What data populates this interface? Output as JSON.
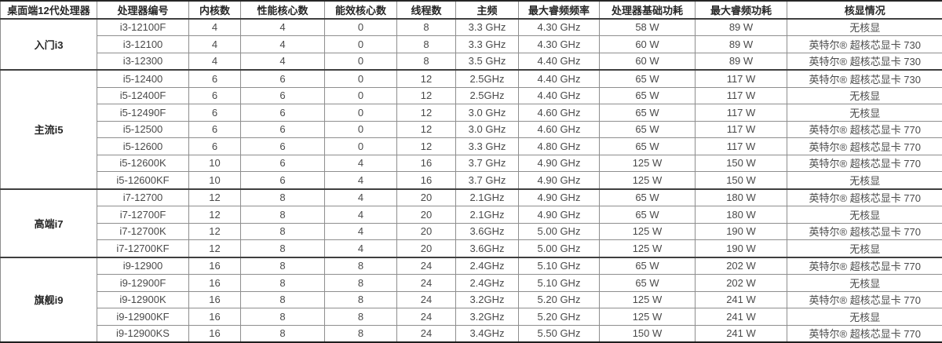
{
  "chart_data": {
    "type": "table",
    "title": "桌面端12代处理器规格表",
    "columns": [
      "桌面端12代处理器",
      "处理器编号",
      "内核数",
      "性能核心数",
      "能效核心数",
      "线程数",
      "主频",
      "最大睿频频率",
      "处理器基础功耗",
      "最大睿频功耗",
      "核显情况"
    ],
    "groups": [
      {
        "label": "入门i3",
        "rows": [
          [
            "i3-12100F",
            "4",
            "4",
            "0",
            "8",
            "3.3 GHz",
            "4.30 GHz",
            "58 W",
            "89 W",
            "无核显"
          ],
          [
            "i3-12100",
            "4",
            "4",
            "0",
            "8",
            "3.3 GHz",
            "4.30 GHz",
            "60 W",
            "89 W",
            "英特尔® 超核芯显卡 730"
          ],
          [
            "i3-12300",
            "4",
            "4",
            "0",
            "8",
            "3.5 GHz",
            "4.40 GHz",
            "60 W",
            "89 W",
            "英特尔® 超核芯显卡 730"
          ]
        ]
      },
      {
        "label": "主流i5",
        "rows": [
          [
            "i5-12400",
            "6",
            "6",
            "0",
            "12",
            "2.5GHz",
            "4.40 GHz",
            "65 W",
            "117 W",
            "英特尔® 超核芯显卡 730"
          ],
          [
            "i5-12400F",
            "6",
            "6",
            "0",
            "12",
            "2.5GHz",
            "4.40 GHz",
            "65 W",
            "117 W",
            "无核显"
          ],
          [
            "i5-12490F",
            "6",
            "6",
            "0",
            "12",
            "3.0 GHz",
            "4.60 GHz",
            "65 W",
            "117 W",
            "无核显"
          ],
          [
            "i5-12500",
            "6",
            "6",
            "0",
            "12",
            "3.0 GHz",
            "4.60 GHz",
            "65 W",
            "117 W",
            "英特尔® 超核芯显卡 770"
          ],
          [
            "i5-12600",
            "6",
            "6",
            "0",
            "12",
            "3.3 GHz",
            "4.80 GHz",
            "65 W",
            "117 W",
            "英特尔® 超核芯显卡 770"
          ],
          [
            "i5-12600K",
            "10",
            "6",
            "4",
            "16",
            "3.7 GHz",
            "4.90 GHz",
            "125 W",
            "150 W",
            "英特尔® 超核芯显卡 770"
          ],
          [
            "i5-12600KF",
            "10",
            "6",
            "4",
            "16",
            "3.7 GHz",
            "4.90 GHz",
            "125 W",
            "150 W",
            "无核显"
          ]
        ]
      },
      {
        "label": "高端i7",
        "rows": [
          [
            "i7-12700",
            "12",
            "8",
            "4",
            "20",
            "2.1GHz",
            "4.90 GHz",
            "65 W",
            "180 W",
            "英特尔® 超核芯显卡 770"
          ],
          [
            "i7-12700F",
            "12",
            "8",
            "4",
            "20",
            "2.1GHz",
            "4.90 GHz",
            "65 W",
            "180 W",
            "无核显"
          ],
          [
            "i7-12700K",
            "12",
            "8",
            "4",
            "20",
            "3.6GHz",
            "5.00 GHz",
            "125 W",
            "190 W",
            "英特尔® 超核芯显卡 770"
          ],
          [
            "i7-12700KF",
            "12",
            "8",
            "4",
            "20",
            "3.6GHz",
            "5.00 GHz",
            "125 W",
            "190 W",
            "无核显"
          ]
        ]
      },
      {
        "label": "旗舰i9",
        "rows": [
          [
            "i9-12900",
            "16",
            "8",
            "8",
            "24",
            "2.4GHz",
            "5.10 GHz",
            "65 W",
            "202 W",
            "英特尔® 超核芯显卡 770"
          ],
          [
            "i9-12900F",
            "16",
            "8",
            "8",
            "24",
            "2.4GHz",
            "5.10 GHz",
            "65 W",
            "202 W",
            "无核显"
          ],
          [
            "i9-12900K",
            "16",
            "8",
            "8",
            "24",
            "3.2GHz",
            "5.20 GHz",
            "125 W",
            "241 W",
            "英特尔® 超核芯显卡 770"
          ],
          [
            "i9-12900KF",
            "16",
            "8",
            "8",
            "24",
            "3.2GHz",
            "5.20 GHz",
            "125 W",
            "241 W",
            "无核显"
          ],
          [
            "i9-12900KS",
            "16",
            "8",
            "8",
            "24",
            "3.4GHz",
            "5.50 GHz",
            "150 W",
            "241 W",
            "英特尔® 超核芯显卡 770"
          ]
        ]
      }
    ],
    "layout_hints": {
      "grid": "on",
      "group_column_spans_rows": true,
      "text_color": "#4a4a4a",
      "header_text_color": "#262626",
      "grid_color": "#8e8e8e",
      "separator_color": "#3f3f3f",
      "background": "#ffffff"
    }
  }
}
